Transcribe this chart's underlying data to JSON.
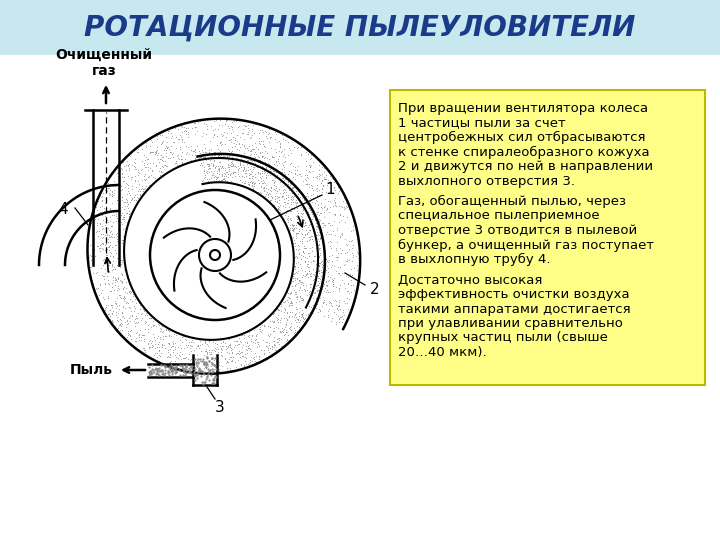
{
  "title": "РОТАЦИОННЫЕ ПЫЛЕУЛОВИТЕЛИ",
  "title_color": "#1a3a8a",
  "title_bg_color": "#c8e8f0",
  "title_fontsize": 20,
  "text_box_bg": "#ffff88",
  "text_box_border": "#cccc00",
  "para1": "При вращении вентилятора колеса\n1 частицы пыли за счет\nцентробежных сил отбрасываются\nк стенке спиралеобразного кожуха\n2 и движутся по ней в направлении\nвыхлопного отверстия 3.",
  "para2": "Газ, обогащенный пылью, через\nспециальное пылеприемное\nотверстие 3 отводится в пылевой\nбункер, а очищенный газ поступает\nв выхлопную трубу 4.",
  "para3": "Достаточно высокая\nэффективность очистки воздуха\nтакими аппаратами достигается\nпри улавливании сравнительно\nкрупных частиц пыли (свыше\n20…40 мкм).",
  "label_ochisch": "Очищенный\nгаз",
  "label_pyl": "Пыль",
  "label_1": "1",
  "label_2": "2",
  "label_3": "3",
  "label_4": "4",
  "bg_color": "#ffffff"
}
